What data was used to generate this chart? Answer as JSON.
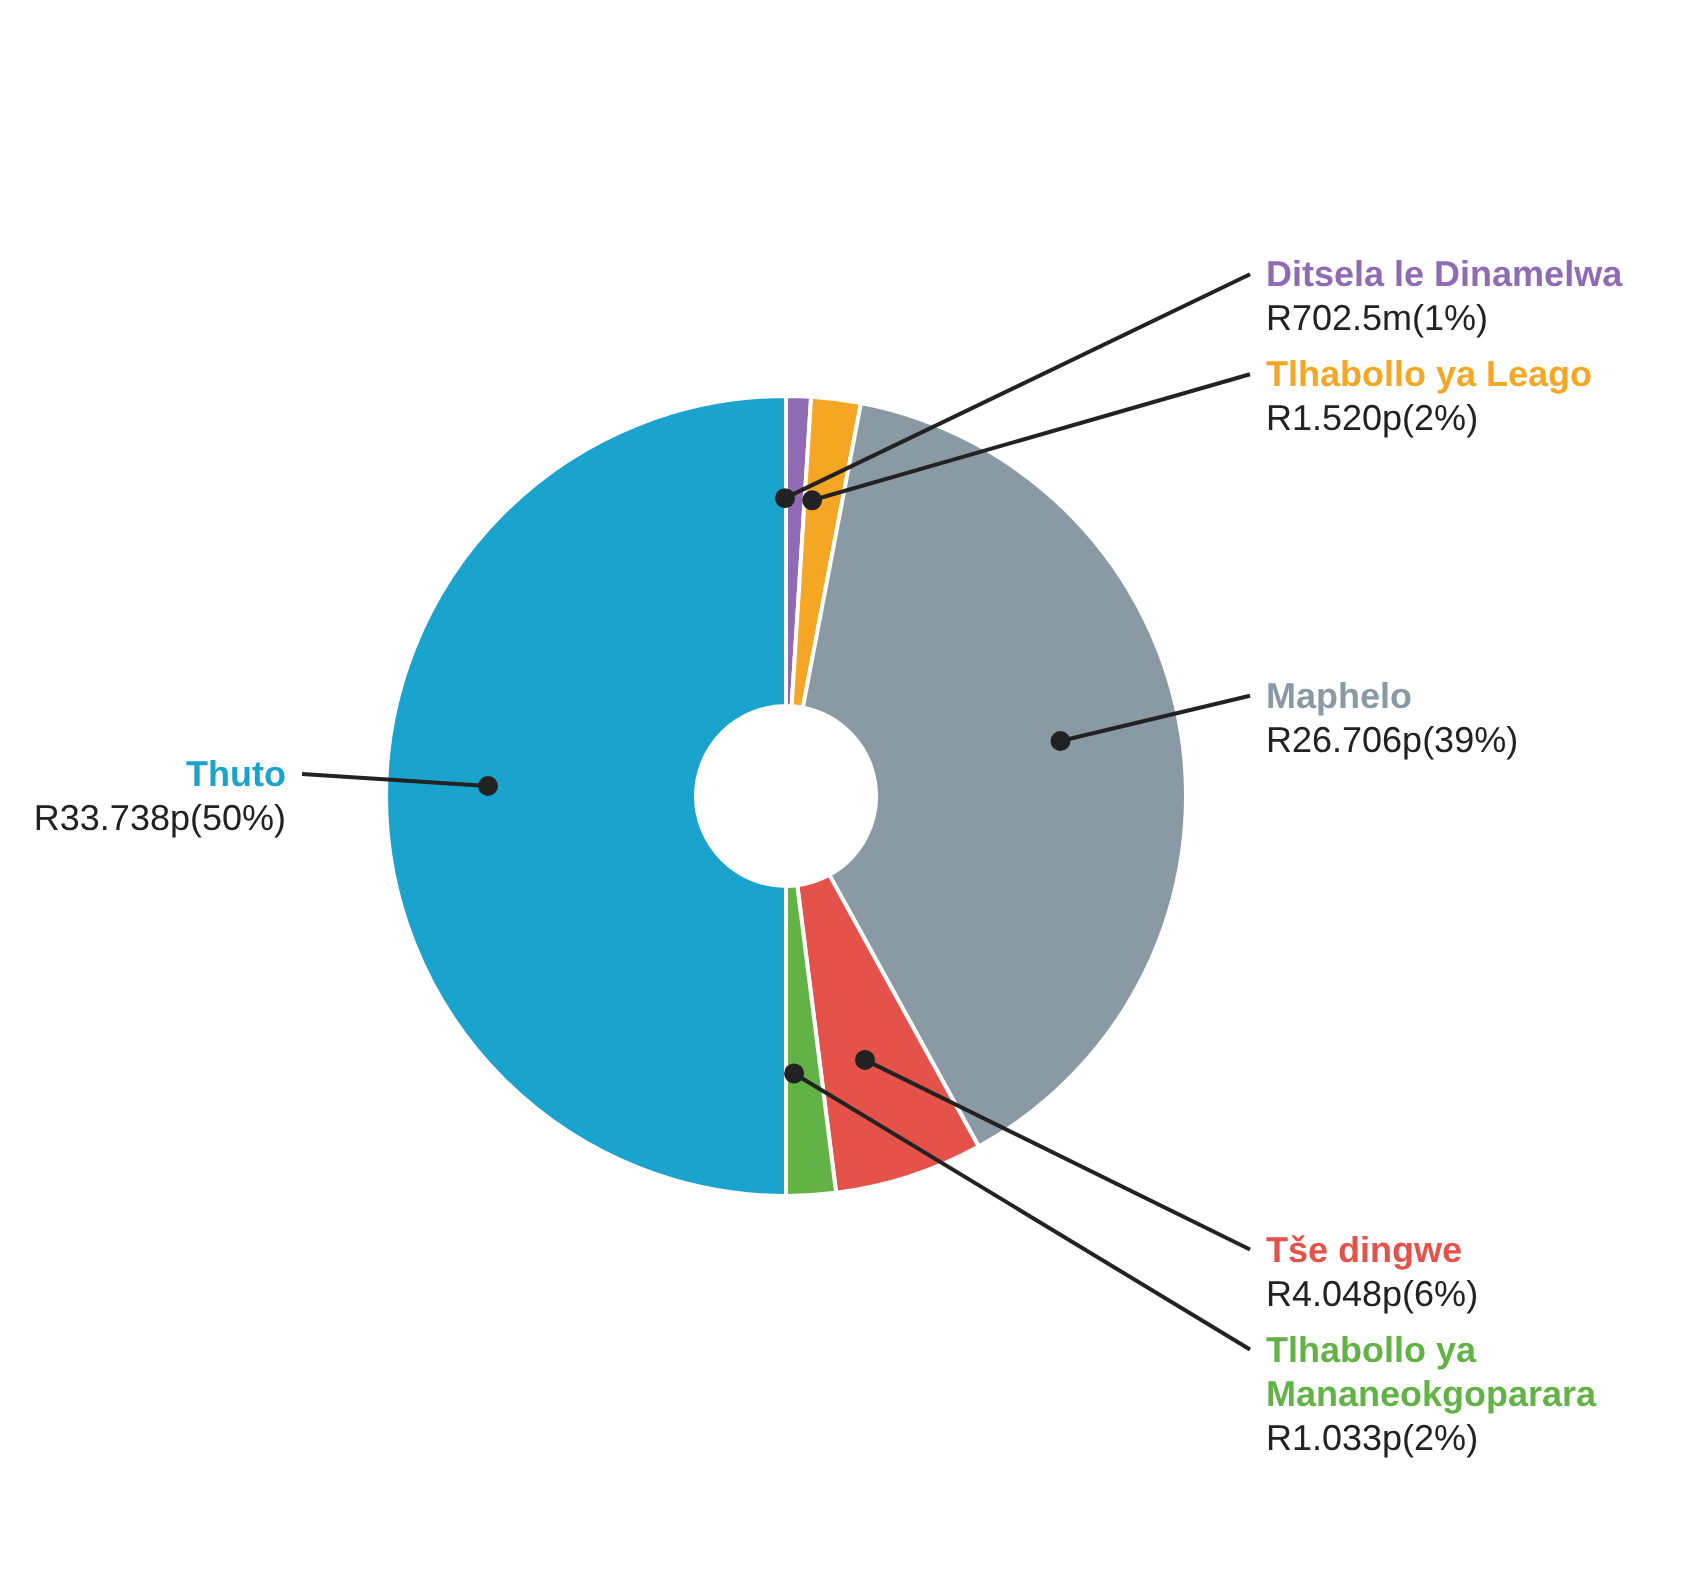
{
  "chart_data": {
    "type": "donut",
    "categories": [
      "Ditsela le Dinamelwa",
      "Tlhabollo ya Leago",
      "Maphelo",
      "Tše dingwe",
      "Tlhabollo ya Mananeokgoparara",
      "Thuto"
    ],
    "values": [
      1,
      2,
      39,
      6,
      2,
      50
    ],
    "colors": [
      "#8e6bb3",
      "#f5a623",
      "#8a9aa4",
      "#e5524a",
      "#62b246",
      "#1aa3cc"
    ],
    "value_labels": [
      "R702.5m(1%)",
      "R1.520p(2%)",
      "R26.706p(39%)",
      "R4.048p(6%)",
      "R1.033p(2%)",
      "R33.738p(50%)"
    ]
  }
}
